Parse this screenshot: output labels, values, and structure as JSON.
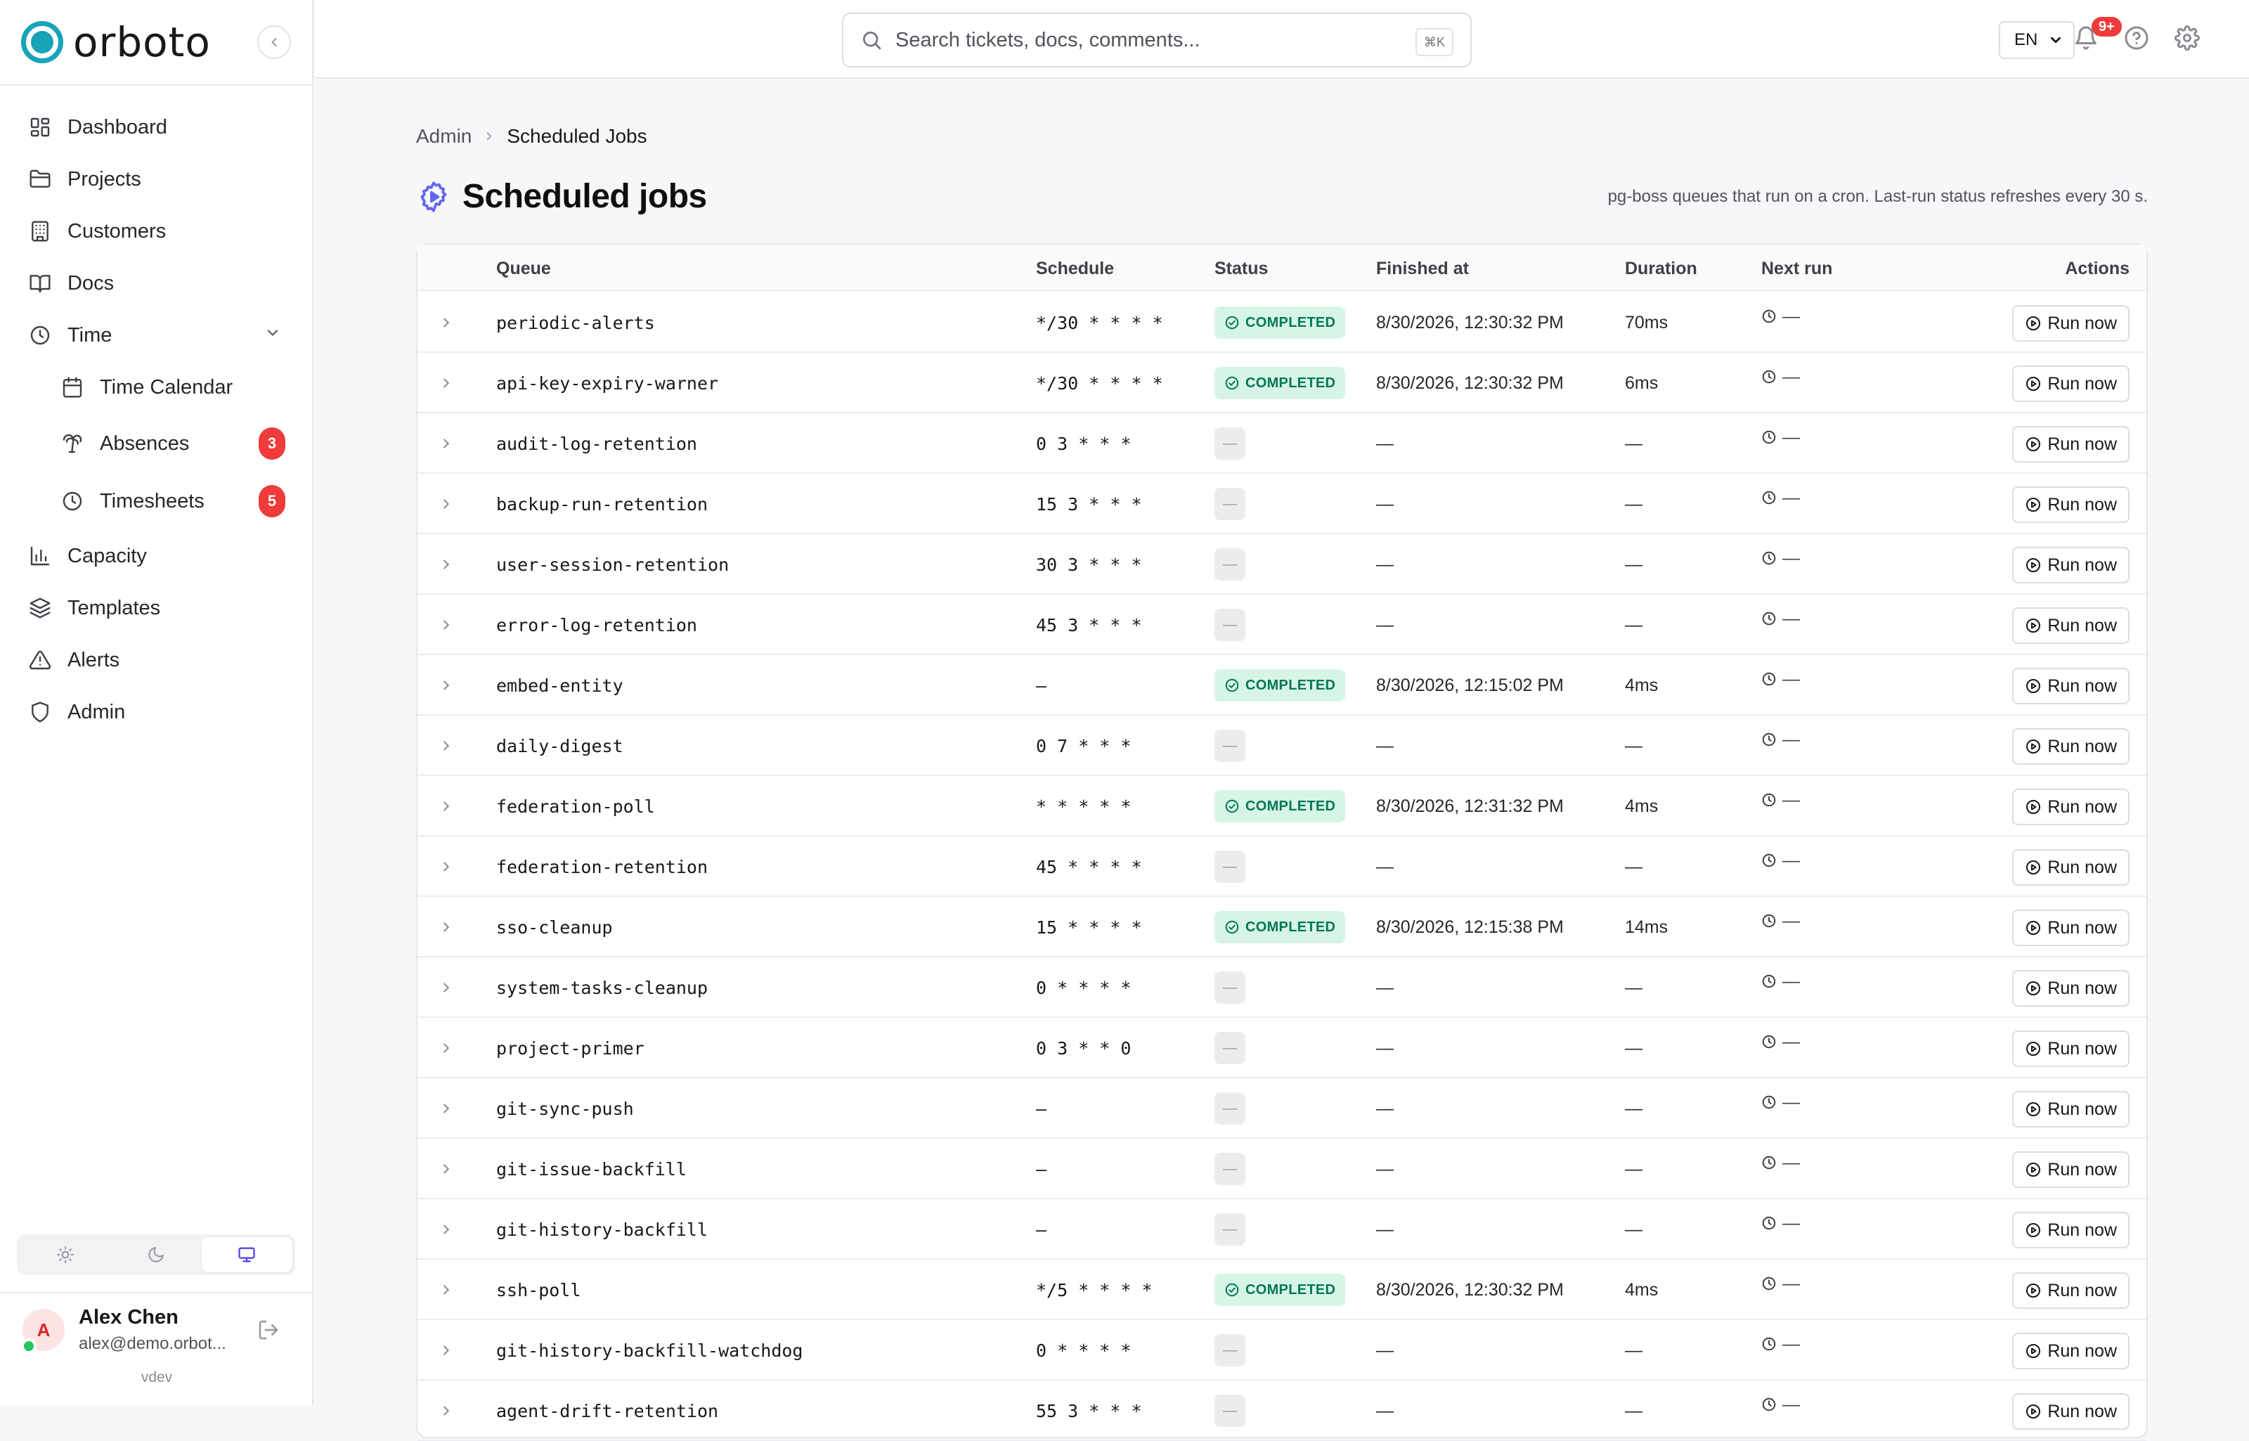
{
  "brand": {
    "name": "orboto"
  },
  "colors": {
    "accent": "#17a3b8",
    "primary": "#4f46e5",
    "badge_red": "#ef3b3b",
    "completed_bg": "#d7f5e6",
    "completed_text": "#047857"
  },
  "nav": [
    {
      "label": "Dashboard",
      "icon": "dashboard-icon"
    },
    {
      "label": "Projects",
      "icon": "folder-icon"
    },
    {
      "label": "Customers",
      "icon": "building-icon"
    },
    {
      "label": "Docs",
      "icon": "book-icon"
    },
    {
      "label": "Time",
      "icon": "clock-icon",
      "expanded": true
    },
    {
      "label": "Time Calendar",
      "icon": "calendar-icon",
      "sub": true
    },
    {
      "label": "Absences",
      "icon": "palm-tree-icon",
      "sub": true,
      "badge": "3"
    },
    {
      "label": "Timesheets",
      "icon": "clock-icon",
      "sub": true,
      "badge": "5"
    },
    {
      "label": "Capacity",
      "icon": "bar-chart-icon"
    },
    {
      "label": "Templates",
      "icon": "layers-icon"
    },
    {
      "label": "Alerts",
      "icon": "alert-triangle-icon"
    },
    {
      "label": "Admin",
      "icon": "shield-icon"
    }
  ],
  "theme": {
    "options": [
      "light",
      "dark",
      "system"
    ],
    "active": "system"
  },
  "user": {
    "initial": "A",
    "name": "Alex Chen",
    "email": "alex@demo.orbot...",
    "version": "vdev"
  },
  "topbar": {
    "search_placeholder": "Search tickets, docs, comments...",
    "search_shortcut": "⌘K",
    "language": "EN",
    "notifications_badge": "9+"
  },
  "breadcrumb": {
    "parent": "Admin",
    "current": "Scheduled Jobs"
  },
  "page": {
    "title": "Scheduled jobs",
    "subtitle": "pg-boss queues that run on a cron. Last-run status refreshes every 30 s."
  },
  "table": {
    "columns": [
      "Queue",
      "Schedule",
      "Status",
      "Finished at",
      "Duration",
      "Next run",
      "Actions"
    ],
    "run_label": "Run now",
    "rows": [
      {
        "queue": "periodic-alerts",
        "schedule": "*/30 * * * *",
        "status": "COMPLETED",
        "finished": "8/30/2026, 12:30:32 PM",
        "duration": "70ms",
        "next": "—"
      },
      {
        "queue": "api-key-expiry-warner",
        "schedule": "*/30 * * * *",
        "status": "COMPLETED",
        "finished": "8/30/2026, 12:30:32 PM",
        "duration": "6ms",
        "next": "—"
      },
      {
        "queue": "audit-log-retention",
        "schedule": "0 3 * * *",
        "status": "—",
        "finished": "—",
        "duration": "—",
        "next": "—"
      },
      {
        "queue": "backup-run-retention",
        "schedule": "15 3 * * *",
        "status": "—",
        "finished": "—",
        "duration": "—",
        "next": "—"
      },
      {
        "queue": "user-session-retention",
        "schedule": "30 3 * * *",
        "status": "—",
        "finished": "—",
        "duration": "—",
        "next": "—"
      },
      {
        "queue": "error-log-retention",
        "schedule": "45 3 * * *",
        "status": "—",
        "finished": "—",
        "duration": "—",
        "next": "—"
      },
      {
        "queue": "embed-entity",
        "schedule": "—",
        "status": "COMPLETED",
        "finished": "8/30/2026, 12:15:02 PM",
        "duration": "4ms",
        "next": "—"
      },
      {
        "queue": "daily-digest",
        "schedule": "0 7 * * *",
        "status": "—",
        "finished": "—",
        "duration": "—",
        "next": "—"
      },
      {
        "queue": "federation-poll",
        "schedule": "* * * * *",
        "status": "COMPLETED",
        "finished": "8/30/2026, 12:31:32 PM",
        "duration": "4ms",
        "next": "—"
      },
      {
        "queue": "federation-retention",
        "schedule": "45 * * * *",
        "status": "—",
        "finished": "—",
        "duration": "—",
        "next": "—"
      },
      {
        "queue": "sso-cleanup",
        "schedule": "15 * * * *",
        "status": "COMPLETED",
        "finished": "8/30/2026, 12:15:38 PM",
        "duration": "14ms",
        "next": "—"
      },
      {
        "queue": "system-tasks-cleanup",
        "schedule": "0 * * * *",
        "status": "—",
        "finished": "—",
        "duration": "—",
        "next": "—"
      },
      {
        "queue": "project-primer",
        "schedule": "0 3 * * 0",
        "status": "—",
        "finished": "—",
        "duration": "—",
        "next": "—"
      },
      {
        "queue": "git-sync-push",
        "schedule": "—",
        "status": "—",
        "finished": "—",
        "duration": "—",
        "next": "—"
      },
      {
        "queue": "git-issue-backfill",
        "schedule": "—",
        "status": "—",
        "finished": "—",
        "duration": "—",
        "next": "—"
      },
      {
        "queue": "git-history-backfill",
        "schedule": "—",
        "status": "—",
        "finished": "—",
        "duration": "—",
        "next": "—"
      },
      {
        "queue": "ssh-poll",
        "schedule": "*/5 * * * *",
        "status": "COMPLETED",
        "finished": "8/30/2026, 12:30:32 PM",
        "duration": "4ms",
        "next": "—"
      },
      {
        "queue": "git-history-backfill-watchdog",
        "schedule": "0 * * * *",
        "status": "—",
        "finished": "—",
        "duration": "—",
        "next": "—"
      },
      {
        "queue": "agent-drift-retention",
        "schedule": "55 3 * * *",
        "status": "—",
        "finished": "—",
        "duration": "—",
        "next": "—"
      }
    ]
  }
}
